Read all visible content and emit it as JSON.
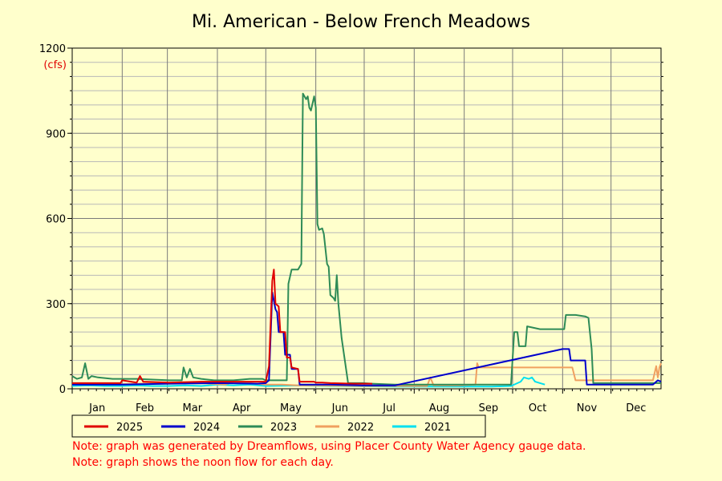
{
  "chart_data": {
    "type": "line",
    "title": "Mi. American - Below French Meadows",
    "unit_label": "(cfs)",
    "ylim": [
      0,
      1200
    ],
    "yticks": [
      0,
      300,
      600,
      900,
      1200
    ],
    "xlim": [
      0,
      365
    ],
    "months": [
      "Jan",
      "Feb",
      "Mar",
      "Apr",
      "May",
      "Jun",
      "Jul",
      "Aug",
      "Sep",
      "Oct",
      "Nov",
      "Dec"
    ],
    "grid": true,
    "legend_position": "bottom",
    "series": [
      {
        "name": "2025",
        "color": "#e00000",
        "points": [
          [
            0,
            20
          ],
          [
            20,
            20
          ],
          [
            30,
            20
          ],
          [
            31,
            30
          ],
          [
            40,
            22
          ],
          [
            42,
            45
          ],
          [
            44,
            25
          ],
          [
            60,
            22
          ],
          [
            80,
            25
          ],
          [
            100,
            25
          ],
          [
            118,
            25
          ],
          [
            120,
            25
          ],
          [
            122,
            80
          ],
          [
            124,
            380
          ],
          [
            125,
            420
          ],
          [
            126,
            300
          ],
          [
            128,
            290
          ],
          [
            129,
            200
          ],
          [
            132,
            200
          ],
          [
            133,
            110
          ],
          [
            135,
            110
          ],
          [
            136,
            75
          ],
          [
            140,
            70
          ],
          [
            141,
            25
          ],
          [
            150,
            25
          ],
          [
            151,
            22
          ],
          [
            155,
            22
          ],
          [
            160,
            20
          ],
          [
            175,
            18
          ],
          [
            186,
            18
          ]
        ]
      },
      {
        "name": "2024",
        "color": "#0000cc",
        "points": [
          [
            0,
            15
          ],
          [
            30,
            15
          ],
          [
            60,
            18
          ],
          [
            90,
            20
          ],
          [
            115,
            18
          ],
          [
            120,
            20
          ],
          [
            122,
            30
          ],
          [
            124,
            340
          ],
          [
            126,
            280
          ],
          [
            127,
            270
          ],
          [
            128,
            200
          ],
          [
            131,
            200
          ],
          [
            132,
            120
          ],
          [
            135,
            120
          ],
          [
            136,
            70
          ],
          [
            140,
            70
          ],
          [
            141,
            15
          ],
          [
            150,
            15
          ],
          [
            160,
            15
          ],
          [
            180,
            12
          ],
          [
            200,
            12
          ],
          [
            304,
            140
          ],
          [
            308,
            140
          ],
          [
            309,
            100
          ],
          [
            318,
            100
          ],
          [
            319,
            15
          ],
          [
            340,
            15
          ],
          [
            360,
            15
          ],
          [
            363,
            30
          ],
          [
            365,
            25
          ]
        ]
      },
      {
        "name": "2023",
        "color": "#2e8b57",
        "points": [
          [
            0,
            45
          ],
          [
            3,
            35
          ],
          [
            6,
            40
          ],
          [
            8,
            90
          ],
          [
            10,
            35
          ],
          [
            12,
            45
          ],
          [
            16,
            40
          ],
          [
            25,
            35
          ],
          [
            40,
            35
          ],
          [
            60,
            30
          ],
          [
            68,
            30
          ],
          [
            69,
            75
          ],
          [
            71,
            40
          ],
          [
            73,
            70
          ],
          [
            75,
            40
          ],
          [
            80,
            35
          ],
          [
            88,
            30
          ],
          [
            100,
            30
          ],
          [
            110,
            35
          ],
          [
            118,
            35
          ],
          [
            120,
            30
          ],
          [
            125,
            30
          ],
          [
            130,
            30
          ],
          [
            133,
            30
          ],
          [
            134,
            370
          ],
          [
            136,
            420
          ],
          [
            140,
            420
          ],
          [
            142,
            440
          ],
          [
            143,
            1040
          ],
          [
            145,
            1020
          ],
          [
            146,
            1030
          ],
          [
            147,
            990
          ],
          [
            148,
            980
          ],
          [
            150,
            1030
          ],
          [
            151,
            990
          ],
          [
            152,
            580
          ],
          [
            153,
            560
          ],
          [
            155,
            565
          ],
          [
            156,
            545
          ],
          [
            158,
            440
          ],
          [
            159,
            430
          ],
          [
            160,
            330
          ],
          [
            162,
            320
          ],
          [
            163,
            310
          ],
          [
            164,
            400
          ],
          [
            165,
            300
          ],
          [
            167,
            180
          ],
          [
            170,
            60
          ],
          [
            171,
            20
          ],
          [
            180,
            20
          ],
          [
            186,
            18
          ],
          [
            200,
            15
          ],
          [
            240,
            15
          ],
          [
            272,
            15
          ],
          [
            274,
            200
          ],
          [
            276,
            200
          ],
          [
            277,
            150
          ],
          [
            281,
            150
          ],
          [
            282,
            220
          ],
          [
            290,
            210
          ],
          [
            300,
            210
          ],
          [
            305,
            210
          ],
          [
            306,
            260
          ],
          [
            312,
            260
          ],
          [
            318,
            255
          ],
          [
            320,
            250
          ],
          [
            322,
            140
          ],
          [
            323,
            20
          ],
          [
            340,
            20
          ],
          [
            365,
            20
          ]
        ]
      },
      {
        "name": "2022",
        "color": "#f0a060",
        "points": [
          [
            0,
            18
          ],
          [
            20,
            15
          ],
          [
            40,
            18
          ],
          [
            60,
            20
          ],
          [
            80,
            20
          ],
          [
            95,
            15
          ],
          [
            100,
            25
          ],
          [
            110,
            20
          ],
          [
            120,
            15
          ],
          [
            130,
            15
          ],
          [
            140,
            12
          ],
          [
            150,
            12
          ],
          [
            180,
            10
          ],
          [
            200,
            10
          ],
          [
            220,
            10
          ],
          [
            222,
            40
          ],
          [
            224,
            12
          ],
          [
            240,
            12
          ],
          [
            250,
            15
          ],
          [
            251,
            90
          ],
          [
            252,
            75
          ],
          [
            260,
            75
          ],
          [
            280,
            75
          ],
          [
            300,
            75
          ],
          [
            310,
            75
          ],
          [
            312,
            30
          ],
          [
            320,
            30
          ],
          [
            330,
            30
          ],
          [
            340,
            30
          ],
          [
            360,
            30
          ],
          [
            362,
            80
          ],
          [
            363,
            40
          ],
          [
            364,
            75
          ],
          [
            365,
            90
          ]
        ]
      },
      {
        "name": "2021",
        "color": "#00e0f0",
        "points": [
          [
            0,
            10
          ],
          [
            10,
            12
          ],
          [
            20,
            10
          ],
          [
            30,
            10
          ],
          [
            40,
            12
          ],
          [
            50,
            10
          ],
          [
            60,
            10
          ],
          [
            70,
            12
          ],
          [
            80,
            10
          ],
          [
            90,
            15
          ],
          [
            100,
            12
          ],
          [
            110,
            15
          ],
          [
            120,
            10
          ],
          [
            140,
            12
          ],
          [
            160,
            10
          ],
          [
            200,
            8
          ],
          [
            240,
            8
          ],
          [
            260,
            8
          ],
          [
            272,
            10
          ],
          [
            278,
            25
          ],
          [
            280,
            40
          ],
          [
            283,
            35
          ],
          [
            285,
            40
          ],
          [
            287,
            25
          ],
          [
            290,
            20
          ],
          [
            293,
            15
          ]
        ]
      }
    ]
  },
  "notes": [
    "Note: graph was generated by Dreamflows, using Placer County Water Agency gauge data.",
    "Note: graph shows the noon flow for each day."
  ]
}
